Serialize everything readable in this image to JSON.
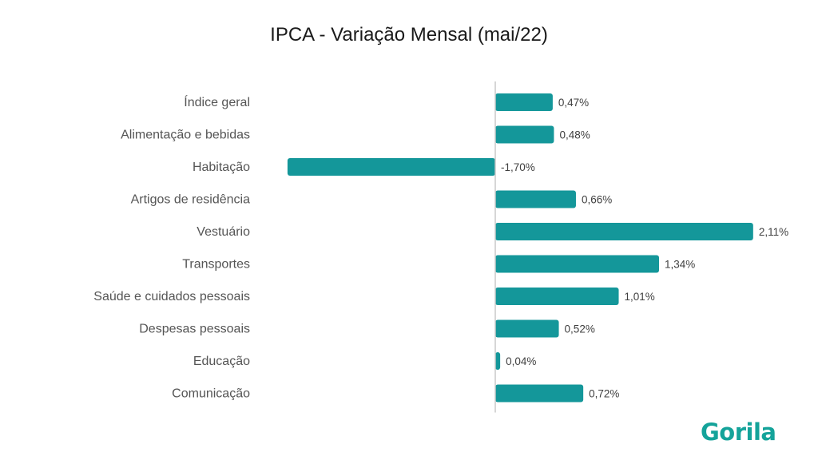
{
  "chart_data": {
    "type": "bar",
    "orientation": "horizontal",
    "title": "IPCA - Variação Mensal (mai/22)",
    "xlabel": "",
    "ylabel": "",
    "categories": [
      "Índice geral",
      "Alimentação e bebidas",
      "Habitação",
      "Artigos de residência",
      "Vestuário",
      "Transportes",
      "Saúde e cuidados pessoais",
      "Despesas pessoais",
      "Educação",
      "Comunicação"
    ],
    "values": [
      0.47,
      0.48,
      -1.7,
      0.66,
      2.11,
      1.34,
      1.01,
      0.52,
      0.04,
      0.72
    ],
    "value_labels": [
      "0,47%",
      "0,48%",
      "-1,70%",
      "0,66%",
      "2,11%",
      "1,34%",
      "1,01%",
      "0,52%",
      "0,04%",
      "0,72%"
    ],
    "xlim": [
      -1.7,
      2.11
    ],
    "grid": false,
    "legend": "none",
    "colors": {
      "bar": "#14979a",
      "zero_line": "#c8c8c8"
    }
  },
  "brand": {
    "logo_text": "Gorila",
    "color": "#14a39a"
  }
}
